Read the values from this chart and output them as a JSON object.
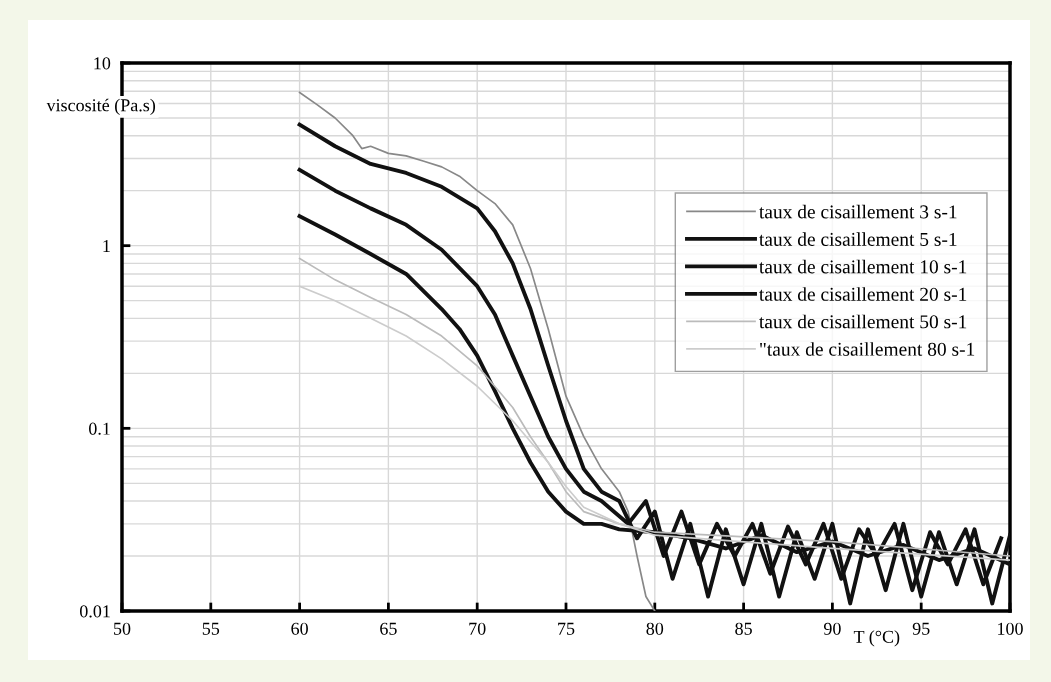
{
  "chart_data": {
    "type": "line",
    "xlabel": "T (°C)",
    "ylabel": "viscosité (Pa.s)",
    "log": "y",
    "xlim": [
      50,
      100
    ],
    "xticks": [
      50,
      55,
      60,
      65,
      70,
      75,
      80,
      85,
      90,
      95,
      100
    ],
    "ylim": [
      0.01,
      10
    ],
    "yticks": [
      0.01,
      0.1,
      1,
      10
    ],
    "grid": true,
    "legend": "right",
    "marker": "none",
    "line_style": "solid",
    "series": [
      {
        "name": "taux de cisaillement 3 s-1",
        "color": "#888888",
        "x": [
          60,
          61,
          62,
          63,
          63.5,
          64,
          65,
          66,
          67,
          68,
          69,
          70,
          71,
          72,
          73,
          74,
          75,
          76,
          77,
          78,
          78.5,
          79,
          79.5,
          80
        ],
        "values": [
          6.9,
          5.9,
          5.0,
          4.0,
          3.4,
          3.5,
          3.2,
          3.1,
          2.9,
          2.7,
          2.4,
          2.0,
          1.7,
          1.3,
          0.75,
          0.35,
          0.15,
          0.09,
          0.06,
          0.045,
          0.035,
          0.02,
          0.012,
          0.01
        ]
      },
      {
        "name": "taux de cisaillement 5 s-1",
        "color": "#111111",
        "x": [
          60,
          62,
          64,
          66,
          68,
          70,
          71,
          72,
          73,
          74,
          75,
          76,
          77,
          78,
          79,
          80,
          81,
          82,
          83,
          84,
          85,
          86,
          87,
          88,
          89,
          90,
          91,
          92,
          93,
          94,
          95,
          96,
          97,
          98,
          99,
          100
        ],
        "values": [
          4.6,
          3.5,
          2.8,
          2.5,
          2.1,
          1.6,
          1.2,
          0.8,
          0.45,
          0.22,
          0.11,
          0.06,
          0.045,
          0.04,
          0.025,
          0.035,
          0.015,
          0.03,
          0.012,
          0.028,
          0.014,
          0.03,
          0.012,
          0.027,
          0.015,
          0.03,
          0.011,
          0.028,
          0.013,
          0.03,
          0.012,
          0.027,
          0.014,
          0.028,
          0.011,
          0.026
        ]
      },
      {
        "name": "taux de cisaillement 10 s-1",
        "color": "#111111",
        "x": [
          60,
          62,
          64,
          66,
          68,
          70,
          71,
          72,
          73,
          74,
          75,
          76,
          77,
          78.5,
          79.5,
          80.5,
          81.5,
          82.5,
          83.5,
          84.5,
          85.5,
          86.5,
          87.5,
          88.5,
          89.5,
          90.5,
          91.5,
          92.5,
          93.5,
          94.5,
          95.5,
          96.5,
          97.5,
          98.5,
          99.5
        ],
        "values": [
          2.6,
          2.0,
          1.6,
          1.3,
          0.95,
          0.6,
          0.42,
          0.25,
          0.15,
          0.09,
          0.06,
          0.045,
          0.04,
          0.03,
          0.04,
          0.02,
          0.035,
          0.018,
          0.03,
          0.02,
          0.03,
          0.016,
          0.029,
          0.018,
          0.03,
          0.015,
          0.028,
          0.02,
          0.03,
          0.013,
          0.027,
          0.018,
          0.028,
          0.014,
          0.025
        ]
      },
      {
        "name": "taux de cisaillement 20 s-1",
        "color": "#111111",
        "x": [
          60,
          62,
          64,
          66,
          68,
          69,
          70,
          71,
          72,
          73,
          74,
          75,
          76,
          77,
          78,
          80,
          82,
          84,
          86,
          88,
          90,
          92,
          94,
          96,
          98,
          100
        ],
        "values": [
          1.45,
          1.15,
          0.9,
          0.7,
          0.45,
          0.35,
          0.25,
          0.16,
          0.1,
          0.065,
          0.045,
          0.035,
          0.03,
          0.03,
          0.028,
          0.027,
          0.025,
          0.022,
          0.026,
          0.021,
          0.024,
          0.02,
          0.023,
          0.019,
          0.022,
          0.018
        ]
      },
      {
        "name": "taux de cisaillement 50 s-1",
        "color": "#bbbbbb",
        "x": [
          60,
          62,
          64,
          66,
          68,
          70,
          72,
          73,
          74,
          75,
          76,
          78,
          80,
          90,
          100
        ],
        "values": [
          0.85,
          0.65,
          0.52,
          0.42,
          0.32,
          0.22,
          0.13,
          0.09,
          0.065,
          0.045,
          0.035,
          0.03,
          0.027,
          0.024,
          0.02
        ]
      },
      {
        "name": "\"taux de cisaillement 80 s-1",
        "color": "#cccccc",
        "x": [
          60,
          62,
          64,
          66,
          68,
          70,
          72,
          74,
          75,
          76,
          78,
          80,
          90,
          100
        ],
        "values": [
          0.6,
          0.5,
          0.4,
          0.32,
          0.24,
          0.17,
          0.11,
          0.065,
          0.048,
          0.037,
          0.03,
          0.026,
          0.022,
          0.019
        ]
      }
    ]
  }
}
